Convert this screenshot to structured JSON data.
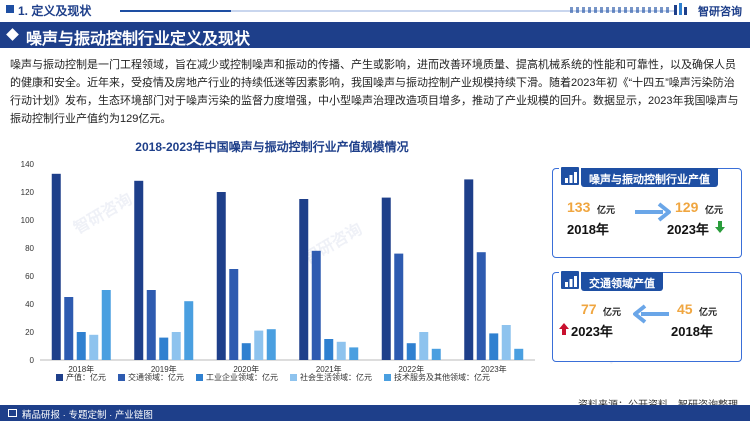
{
  "header": {
    "section": "1. 定义及现状",
    "brand": "智研咨询"
  },
  "title": "噪声与振动控制行业定义及现状",
  "paragraph": "噪声与振动控制是一门工程领域，旨在减少或控制噪声和振动的传播、产生或影响，进而改善环境质量、提高机械系统的性能和可靠性，以及确保人员的健康和安全。近年来，受疫情及房地产行业的持续低迷等因素影响，我国噪声与振动控制产业规模持续下滑。随着2023年初《“十四五”噪声污染防治行动计划》发布，生态环境部门对于噪声污染的监督力度增强，中小型噪声治理改造项目增多，推动了产业规模的回升。数据显示，2023年我国噪声与振动控制行业产值约为129亿元。",
  "chart_data": {
    "type": "bar",
    "title": "2018-2023年中国噪声与振动控制行业产值规模情况",
    "categories": [
      "2018年",
      "2019年",
      "2020年",
      "2021年",
      "2022年",
      "2023年"
    ],
    "ylim": [
      0,
      140
    ],
    "yticks": [
      0,
      20,
      40,
      60,
      80,
      100,
      120,
      140
    ],
    "series": [
      {
        "name": "产值：亿元",
        "color": "#1e3f8a",
        "values": [
          133,
          128,
          120,
          115,
          116,
          129
        ]
      },
      {
        "name": "交通领域：亿元",
        "color": "#2e5bb0",
        "values": [
          45,
          50,
          65,
          78,
          76,
          77
        ]
      },
      {
        "name": "工业企业领域：亿元",
        "color": "#2f80d0",
        "values": [
          20,
          16,
          12,
          15,
          12,
          19
        ]
      },
      {
        "name": "社会生活领域：亿元",
        "color": "#8ec3ee",
        "values": [
          18,
          20,
          21,
          13,
          20,
          25
        ]
      },
      {
        "name": "技术服务及其他领域：亿元",
        "color": "#4a9fe0",
        "values": [
          50,
          42,
          22,
          9,
          8,
          8
        ]
      }
    ],
    "legend_position": "bottom",
    "grid": false
  },
  "cards": [
    {
      "title": "噪声与振动控制行业产值",
      "left": {
        "value": "133",
        "unit": "亿元",
        "year": "2018年"
      },
      "right": {
        "value": "129",
        "unit": "亿元",
        "year": "2023年"
      },
      "trend": "down",
      "trend_color": "#2a9d3c"
    },
    {
      "title": "交通领域产值",
      "left": {
        "value": "77",
        "unit": "亿元",
        "year": "2023年"
      },
      "right": {
        "value": "45",
        "unit": "亿元",
        "year": "2018年"
      },
      "trend": "up",
      "trend_color": "#c8102e"
    }
  ],
  "source": "资料来源：公开资料、智研咨询整理",
  "footer": "精品研报 · 专题定制 · 产业链图"
}
